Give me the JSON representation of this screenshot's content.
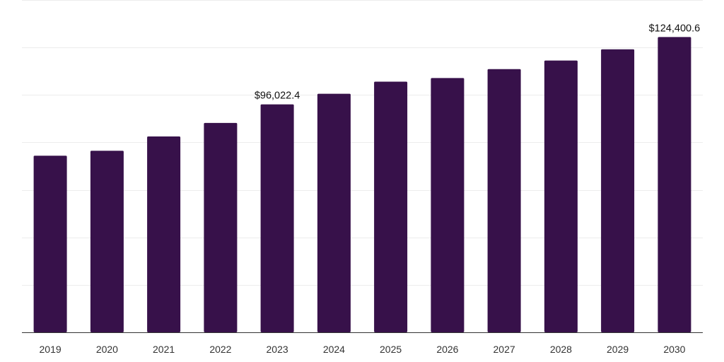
{
  "chart_data": {
    "type": "bar",
    "categories": [
      "2019",
      "2020",
      "2021",
      "2022",
      "2023",
      "2024",
      "2025",
      "2026",
      "2027",
      "2028",
      "2029",
      "2030"
    ],
    "values": [
      74400,
      76500,
      82500,
      88200,
      96022.4,
      100500,
      105600,
      107100,
      110900,
      114500,
      119200,
      124400.6
    ],
    "data_labels": [
      null,
      null,
      null,
      null,
      "$96,022.4",
      null,
      null,
      null,
      null,
      null,
      null,
      "$124,400.6"
    ],
    "ylim": [
      0,
      140000
    ],
    "grid_step": 20000,
    "grid": true,
    "bar_color": "#37114a",
    "title": "",
    "xlabel": "",
    "ylabel": ""
  }
}
